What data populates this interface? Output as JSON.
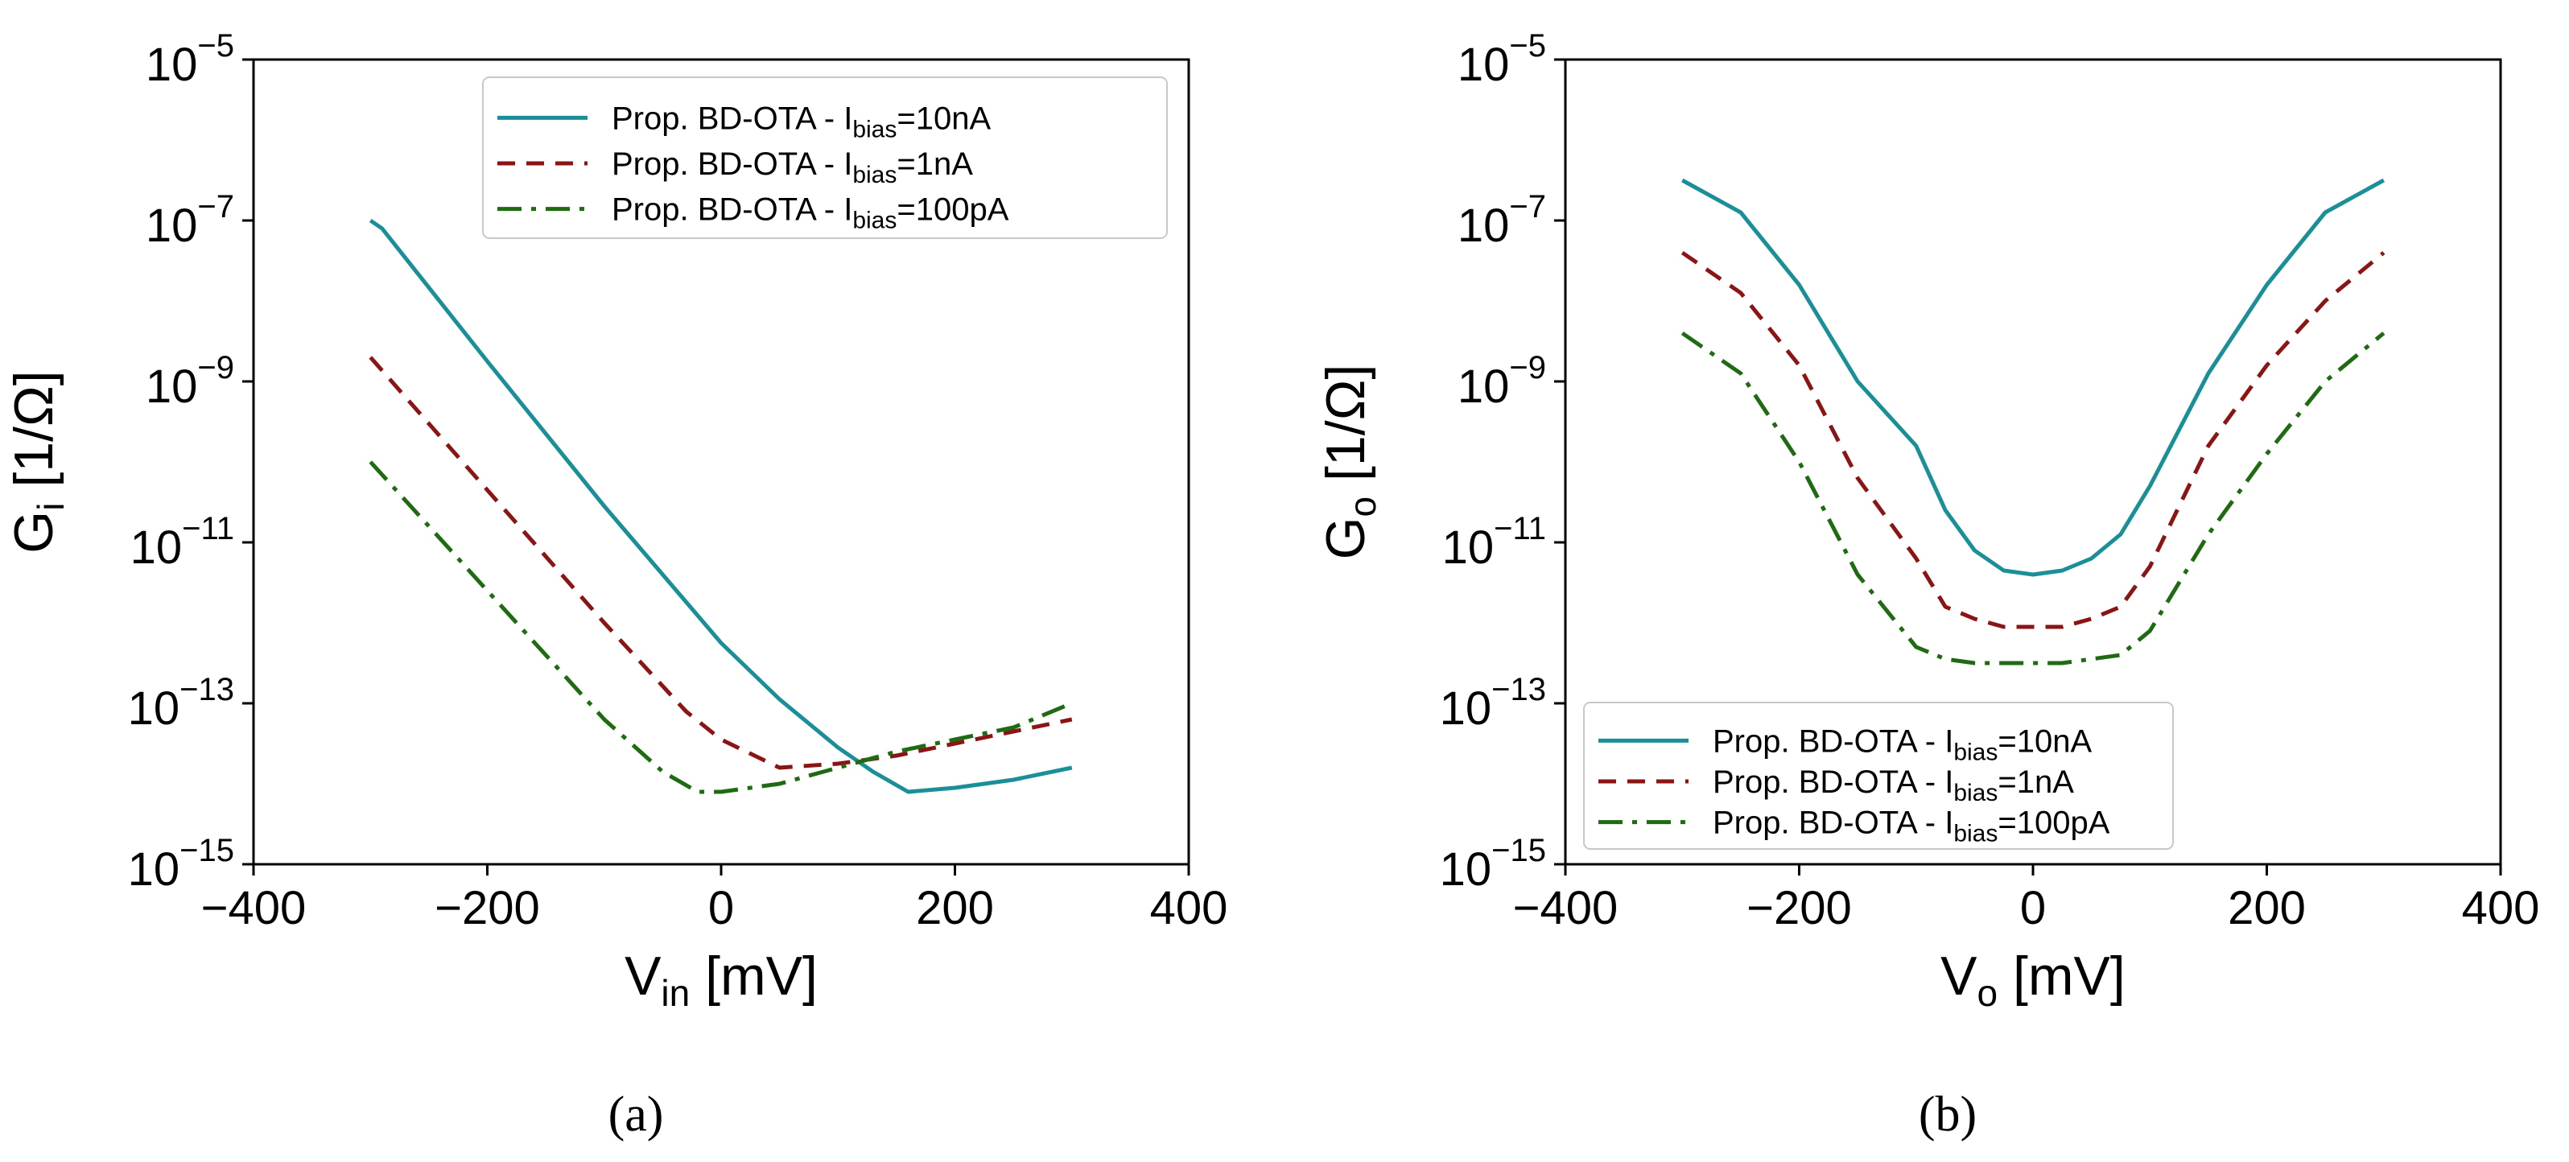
{
  "figure": {
    "panel_labels": [
      "(a)",
      "(b)"
    ]
  },
  "colors": {
    "series_10nA": "#1a8f98",
    "series_1nA": "#8b1515",
    "series_100pA": "#1f6b12"
  },
  "chart_data": [
    {
      "type": "line",
      "panel": "(a)",
      "title": "",
      "xlabel": {
        "main": "V",
        "sub": "in",
        "unit": " [mV]"
      },
      "ylabel": {
        "main": "G",
        "sub": "i",
        "unit": " [1/Ω]"
      },
      "xlim": [
        -400,
        400
      ],
      "ylim_log10": [
        -15,
        -5
      ],
      "xticks": [
        "−400",
        "−200",
        "0",
        "200",
        "400"
      ],
      "xtick_values": [
        -400,
        -200,
        0,
        200,
        400
      ],
      "yticks": [
        {
          "base": "10",
          "exp": "−5"
        },
        {
          "base": "10",
          "exp": "−7"
        },
        {
          "base": "10",
          "exp": "−9"
        },
        {
          "base": "10",
          "exp": "−11"
        },
        {
          "base": "10",
          "exp": "−13"
        },
        {
          "base": "10",
          "exp": "−15"
        }
      ],
      "ytick_values_log10": [
        -5,
        -7,
        -9,
        -11,
        -13,
        -15
      ],
      "legend_position": "top-right",
      "series": [
        {
          "name_main": "Prop. BD-OTA - I",
          "name_sub": "bias",
          "name_tail": "=10nA",
          "style": "solid",
          "color_key": "series_10nA",
          "x": [
            -300,
            -290,
            -200,
            -100,
            0,
            50,
            100,
            130,
            160,
            200,
            250,
            300
          ],
          "log10_y": [
            -7.0,
            -7.1,
            -8.75,
            -10.55,
            -12.25,
            -12.95,
            -13.55,
            -13.85,
            -14.1,
            -14.05,
            -13.95,
            -13.8
          ]
        },
        {
          "name_main": "Prop. BD-OTA - I",
          "name_sub": "bias",
          "name_tail": "=1nA",
          "style": "dashed",
          "color_key": "series_1nA",
          "x": [
            -300,
            -200,
            -100,
            -30,
            0,
            50,
            100,
            150,
            200,
            250,
            300
          ],
          "log10_y": [
            -8.7,
            -10.35,
            -12.0,
            -13.1,
            -13.45,
            -13.8,
            -13.75,
            -13.65,
            -13.5,
            -13.35,
            -13.2
          ]
        },
        {
          "name_main": "Prop. BD-OTA - I",
          "name_sub": "bias",
          "name_tail": "=100pA",
          "style": "dashdot",
          "color_key": "series_100pA",
          "x": [
            -300,
            -200,
            -100,
            -50,
            -20,
            0,
            50,
            100,
            150,
            200,
            250,
            300
          ],
          "log10_y": [
            -10.0,
            -11.6,
            -13.2,
            -13.85,
            -14.1,
            -14.1,
            -14.0,
            -13.8,
            -13.6,
            -13.45,
            -13.3,
            -13.0
          ]
        }
      ]
    },
    {
      "type": "line",
      "panel": "(b)",
      "title": "",
      "xlabel": {
        "main": "V",
        "sub": "o",
        "unit": " [mV]"
      },
      "ylabel": {
        "main": "G",
        "sub": "o",
        "unit": " [1/Ω]"
      },
      "xlim": [
        -400,
        400
      ],
      "ylim_log10": [
        -15,
        -5
      ],
      "xticks": [
        "−400",
        "−200",
        "0",
        "200",
        "400"
      ],
      "xtick_values": [
        -400,
        -200,
        0,
        200,
        400
      ],
      "yticks": [
        {
          "base": "10",
          "exp": "−5"
        },
        {
          "base": "10",
          "exp": "−7"
        },
        {
          "base": "10",
          "exp": "−9"
        },
        {
          "base": "10",
          "exp": "−11"
        },
        {
          "base": "10",
          "exp": "−13"
        },
        {
          "base": "10",
          "exp": "−15"
        }
      ],
      "ytick_values_log10": [
        -5,
        -7,
        -9,
        -11,
        -13,
        -15
      ],
      "legend_position": "bottom-left",
      "series": [
        {
          "name_main": "Prop. BD-OTA - I",
          "name_sub": "bias",
          "name_tail": "=10nA",
          "style": "solid",
          "color_key": "series_10nA",
          "x": [
            -300,
            -250,
            -200,
            -150,
            -100,
            -75,
            -50,
            -25,
            0,
            25,
            50,
            75,
            100,
            150,
            200,
            250,
            300
          ],
          "log10_y": [
            -6.5,
            -6.9,
            -7.8,
            -9.0,
            -9.8,
            -10.6,
            -11.1,
            -11.35,
            -11.4,
            -11.35,
            -11.2,
            -10.9,
            -10.3,
            -8.9,
            -7.8,
            -6.9,
            -6.5
          ]
        },
        {
          "name_main": "Prop. BD-OTA - I",
          "name_sub": "bias",
          "name_tail": "=1nA",
          "style": "dashed",
          "color_key": "series_1nA",
          "x": [
            -300,
            -250,
            -200,
            -150,
            -100,
            -75,
            -50,
            -25,
            0,
            25,
            50,
            75,
            100,
            150,
            200,
            250,
            300
          ],
          "log10_y": [
            -7.4,
            -7.9,
            -8.8,
            -10.2,
            -11.2,
            -11.8,
            -11.95,
            -12.05,
            -12.05,
            -12.05,
            -11.95,
            -11.8,
            -11.3,
            -9.8,
            -8.8,
            -8.0,
            -7.4
          ]
        },
        {
          "name_main": "Prop. BD-OTA - I",
          "name_sub": "bias",
          "name_tail": "=100pA",
          "style": "dashdot",
          "color_key": "series_100pA",
          "x": [
            -300,
            -250,
            -200,
            -150,
            -100,
            -75,
            -50,
            -25,
            0,
            25,
            50,
            75,
            100,
            150,
            200,
            250,
            300
          ],
          "log10_y": [
            -8.4,
            -8.9,
            -10.0,
            -11.4,
            -12.3,
            -12.45,
            -12.5,
            -12.5,
            -12.5,
            -12.5,
            -12.45,
            -12.4,
            -12.1,
            -10.9,
            -9.9,
            -9.0,
            -8.4
          ]
        }
      ]
    }
  ]
}
